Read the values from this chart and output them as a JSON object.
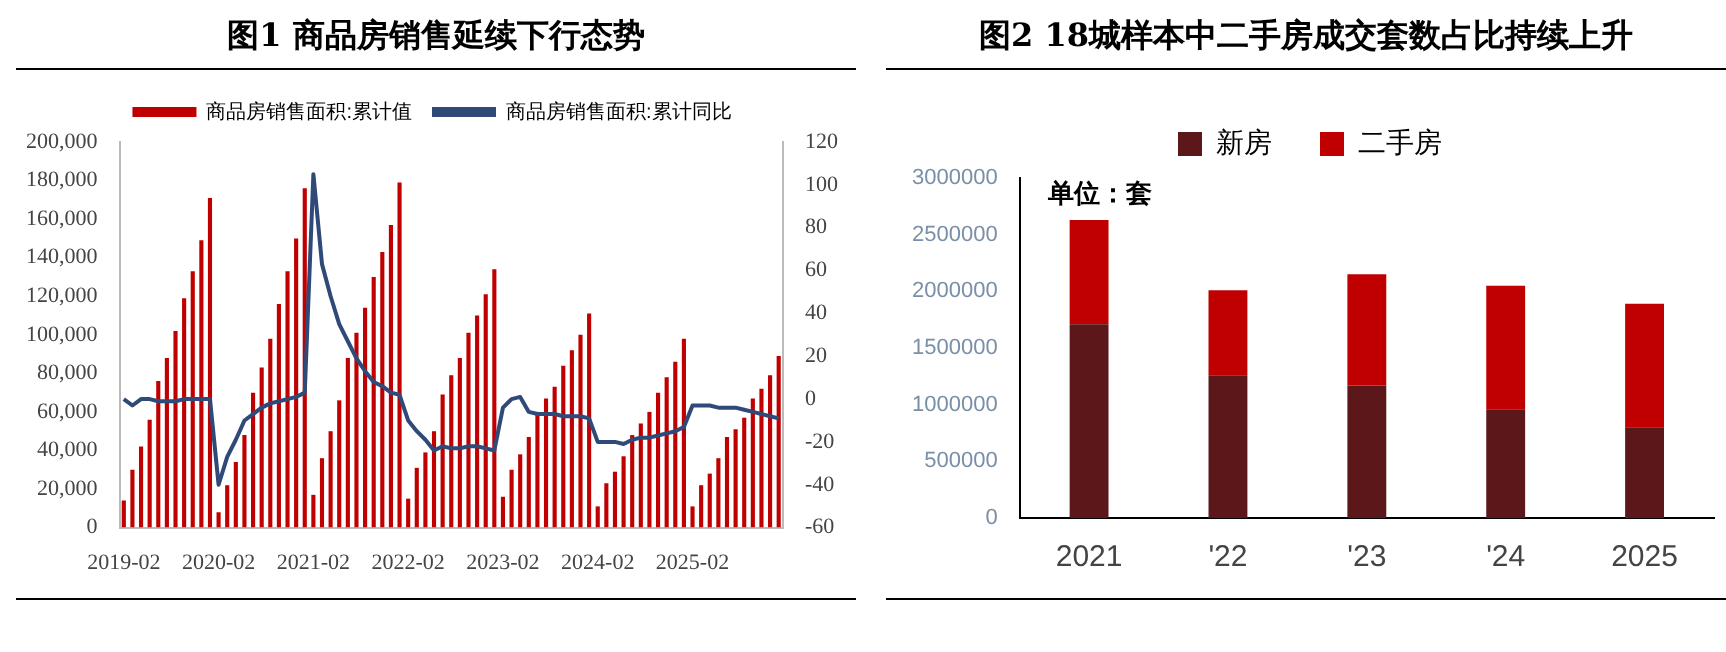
{
  "chart_data": [
    {
      "type": "bar",
      "title": "图1  商品房销售延续下行态势",
      "categories": [
        "2019-02",
        null,
        null,
        null,
        null,
        null,
        null,
        null,
        null,
        null,
        null,
        "2020-02",
        null,
        null,
        null,
        null,
        null,
        null,
        null,
        null,
        null,
        null,
        "2021-02",
        null,
        null,
        null,
        null,
        null,
        null,
        null,
        null,
        null,
        null,
        "2022-02",
        null,
        null,
        null,
        null,
        null,
        null,
        null,
        null,
        null,
        null,
        "2023-02",
        null,
        null,
        null,
        null,
        null,
        null,
        null,
        null,
        null,
        null,
        "2024-02",
        null,
        null,
        null,
        null,
        null,
        null,
        null,
        null,
        null,
        null,
        "2025-02",
        null,
        null,
        null,
        null,
        null,
        null,
        null,
        null,
        null,
        null
      ],
      "series": [
        {
          "name": "商品房销售面积:累计值",
          "type": "bar",
          "color": "#c00000",
          "values": [
            14000,
            30000,
            42000,
            56000,
            76000,
            88000,
            102000,
            119000,
            133000,
            149000,
            171000,
            8000,
            22000,
            34000,
            48000,
            70000,
            83000,
            98000,
            116000,
            133000,
            150000,
            176000,
            17000,
            36000,
            50000,
            66000,
            88000,
            101000,
            114000,
            130000,
            143000,
            157000,
            179000,
            15000,
            31000,
            39000,
            50000,
            69000,
            79000,
            88000,
            101000,
            110000,
            121000,
            134000,
            16000,
            30000,
            38000,
            47000,
            60000,
            67000,
            73000,
            84000,
            92000,
            100000,
            111000,
            11000,
            23000,
            29000,
            37000,
            48000,
            54000,
            60000,
            70000,
            78000,
            86000,
            98000,
            11000,
            22000,
            28000,
            36000,
            47000,
            51000,
            57000,
            67000,
            72000,
            79000,
            89000
          ]
        },
        {
          "name": "商品房销售面积:累计同比",
          "type": "line",
          "axis": "y2",
          "color": "#2f4a78",
          "values": [
            0,
            -3,
            0,
            0,
            -1,
            -1,
            -1,
            0,
            0,
            0,
            0,
            -40,
            -27,
            -19,
            -10,
            -7,
            -4,
            -2,
            -1,
            0,
            1,
            3,
            105,
            63,
            48,
            35,
            27,
            19,
            13,
            8,
            6,
            3,
            2,
            -10,
            -15,
            -19,
            -24,
            -22,
            -23,
            -23,
            -22,
            -22,
            -23,
            -24,
            -4,
            0,
            1,
            -6,
            -7,
            -7,
            -7,
            -8,
            -8,
            -8,
            -9,
            -20,
            -20,
            -20,
            -21,
            -19,
            -18,
            -18,
            -17,
            -16,
            -15,
            -13,
            -3,
            -3,
            -3,
            -4,
            -4,
            -4,
            -5,
            -6,
            -7,
            -8,
            -9
          ]
        }
      ],
      "marker": "none",
      "legend": "top",
      "grid": false,
      "ylim": [
        0,
        200000
      ],
      "yticks": [
        {
          "value": 0,
          "label": "0"
        },
        {
          "value": 20000,
          "label": "20,000"
        },
        {
          "value": 40000,
          "label": "40,000"
        },
        {
          "value": 60000,
          "label": "60,000"
        },
        {
          "value": 80000,
          "label": "80,000"
        },
        {
          "value": 100000,
          "label": "100,000"
        },
        {
          "value": 120000,
          "label": "120,000"
        },
        {
          "value": 140000,
          "label": "140,000"
        },
        {
          "value": 160000,
          "label": "160,000"
        },
        {
          "value": 180000,
          "label": "180,000"
        },
        {
          "value": 200000,
          "label": "200,000"
        }
      ],
      "y2lim": [
        -60,
        120
      ],
      "y2ticks": [
        -60,
        -40,
        -20,
        0,
        20,
        40,
        60,
        80,
        100,
        120
      ]
    },
    {
      "type": "bar",
      "title": "图2  18城样本中二手房成交套数占比持续上升",
      "categories": [
        "2021",
        "'22",
        "'23",
        "'24",
        "2025"
      ],
      "stacked": true,
      "legend": "top",
      "grid": false,
      "series": [
        {
          "name": "新房",
          "color": "#5c171b",
          "values": [
            1710000,
            1260000,
            1170000,
            960000,
            800000
          ]
        },
        {
          "name": "二手房",
          "color": "#c00000",
          "values": [
            920000,
            750000,
            980000,
            1090000,
            1090000
          ]
        }
      ],
      "ylim": [
        0,
        3000000
      ],
      "yticks": [
        0,
        500000,
        1000000,
        1500000,
        2000000,
        2500000,
        3000000
      ],
      "annotations": [
        "单位：套"
      ]
    }
  ]
}
